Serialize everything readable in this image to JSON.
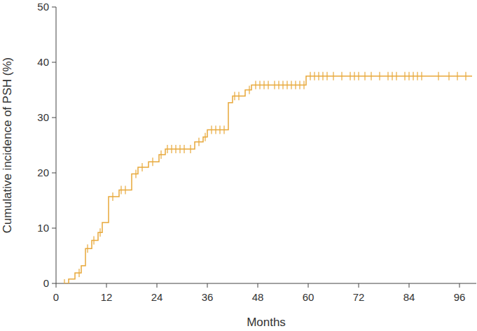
{
  "chart_data": {
    "type": "step",
    "x_label": "Months",
    "y_label": "Cumulative incidence of PSH (%)",
    "xlim": [
      0,
      100
    ],
    "xticks": [
      0,
      12,
      24,
      36,
      48,
      60,
      72,
      84,
      96
    ],
    "ylim": [
      0,
      50
    ],
    "yticks": [
      0,
      10,
      20,
      30,
      40,
      50
    ],
    "grid": false,
    "series": [
      {
        "type": "step",
        "color": "#e8a83a",
        "x": [
          2,
          3,
          4.5,
          6,
          7,
          8.5,
          10,
          11,
          12.5,
          15,
          18,
          19.5,
          22,
          24.5,
          26,
          33,
          35,
          36,
          41,
          42,
          45,
          46.5,
          59.5,
          99
        ],
        "values": [
          0,
          0.8,
          1.9,
          3.2,
          6.3,
          7.8,
          9.2,
          11,
          15.7,
          16.9,
          19.8,
          21,
          22,
          23.3,
          24.3,
          25.6,
          26.5,
          27.8,
          32.7,
          33.9,
          35,
          35.9,
          37.5,
          37.5
        ]
      },
      {
        "type": "scatter",
        "marker": "tick",
        "color": "#e8a83a",
        "x": [
          2,
          5.5,
          7.5,
          9,
          10.5,
          13.5,
          15.5,
          16.5,
          19,
          20.5,
          23,
          25,
          26.5,
          27.5,
          28.5,
          29.5,
          30.5,
          32,
          34,
          35.5,
          37,
          38,
          39,
          40,
          42.5,
          43.5,
          46,
          47.5,
          48.5,
          49.5,
          50.5,
          52,
          53,
          54,
          55,
          56,
          57,
          58,
          59,
          60.5,
          61.5,
          62.5,
          63.5,
          64.5,
          66,
          68,
          70,
          71,
          72,
          73.5,
          75,
          77,
          79,
          80,
          81,
          83,
          84,
          85,
          86,
          87,
          91,
          93.5,
          95.5,
          97.5
        ],
        "values": [
          0,
          1.9,
          6.3,
          7.8,
          9.2,
          15.7,
          16.9,
          16.9,
          19.8,
          21,
          22,
          23.3,
          24.3,
          24.3,
          24.3,
          24.3,
          24.3,
          24.3,
          25.6,
          26.5,
          27.8,
          27.8,
          27.8,
          27.8,
          33.9,
          33.9,
          35,
          35.9,
          35.9,
          35.9,
          35.9,
          35.9,
          35.9,
          35.9,
          35.9,
          35.9,
          35.9,
          35.9,
          35.9,
          37.5,
          37.5,
          37.5,
          37.5,
          37.5,
          37.5,
          37.5,
          37.5,
          37.5,
          37.5,
          37.5,
          37.5,
          37.5,
          37.5,
          37.5,
          37.5,
          37.5,
          37.5,
          37.5,
          37.5,
          37.5,
          37.5,
          37.5,
          37.5,
          37.5
        ]
      }
    ]
  }
}
